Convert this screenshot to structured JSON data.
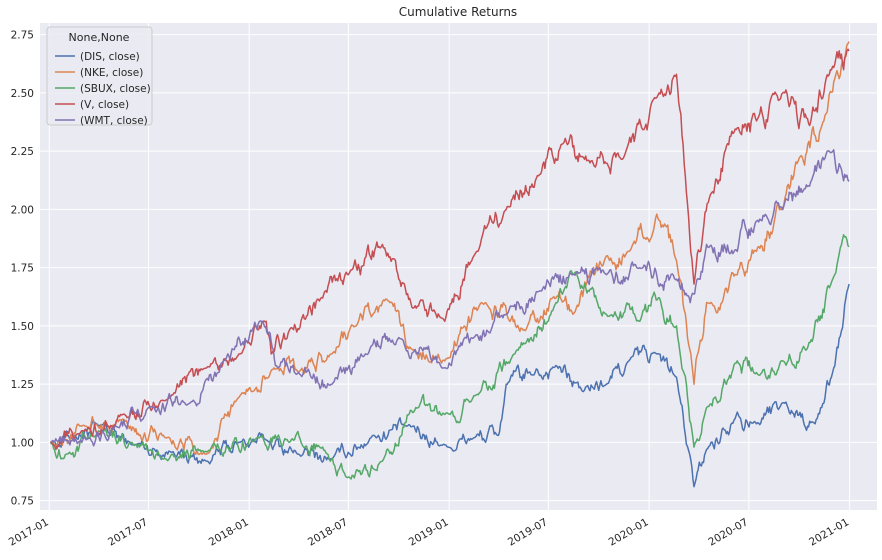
{
  "chart_data": {
    "type": "line",
    "title": "Cumulative Returns",
    "xlabel": "",
    "ylabel": "",
    "x_domain": [
      "2016-12-15",
      "2021-02-20"
    ],
    "ylim": [
      0.71,
      2.8
    ],
    "x_ticks": [
      "2017-01",
      "2017-07",
      "2018-01",
      "2018-07",
      "2019-01",
      "2019-07",
      "2020-01",
      "2020-07",
      "2021-01"
    ],
    "y_ticks": [
      0.75,
      1.0,
      1.25,
      1.5,
      1.75,
      2.0,
      2.25,
      2.5,
      2.75
    ],
    "y_tick_labels": [
      "0.75",
      "1.00",
      "1.25",
      "1.50",
      "1.75",
      "2.00",
      "2.25",
      "2.50",
      "2.75"
    ],
    "grid": true,
    "background": "#EAEAF2",
    "legend": {
      "title": "None,None",
      "position": "top-left",
      "entries": [
        "(DIS, close)",
        "(NKE, close)",
        "(SBUX, close)",
        "(V, close)",
        "(WMT, close)"
      ]
    },
    "series": [
      {
        "name": "(DIS, close)",
        "color": "#4C72B0",
        "x": [
          "2017-01-03",
          "2017-02-15",
          "2017-04-01",
          "2017-06-01",
          "2017-08-15",
          "2017-10-15",
          "2017-12-15",
          "2018-02-01",
          "2018-04-01",
          "2018-06-01",
          "2018-08-15",
          "2018-10-15",
          "2018-12-24",
          "2019-02-15",
          "2019-04-01",
          "2019-04-15",
          "2019-06-01",
          "2019-07-15",
          "2019-09-01",
          "2019-10-15",
          "2019-11-25",
          "2020-01-15",
          "2020-02-20",
          "2020-03-23",
          "2020-04-15",
          "2020-06-10",
          "2020-07-15",
          "2020-09-01",
          "2020-10-30",
          "2020-12-01",
          "2020-12-31"
        ],
        "values": [
          1.0,
          1.03,
          1.07,
          0.99,
          0.96,
          0.92,
          1.0,
          1.01,
          0.95,
          0.93,
          1.03,
          1.07,
          0.99,
          1.02,
          1.03,
          1.25,
          1.29,
          1.33,
          1.22,
          1.25,
          1.35,
          1.38,
          1.28,
          0.81,
          0.97,
          1.13,
          1.08,
          1.17,
          1.08,
          1.3,
          1.68
        ]
      },
      {
        "name": "(NKE, close)",
        "color": "#DD8452",
        "x": [
          "2017-01-03",
          "2017-03-01",
          "2017-05-15",
          "2017-08-01",
          "2017-10-15",
          "2017-12-15",
          "2018-02-15",
          "2018-04-01",
          "2018-06-01",
          "2018-07-15",
          "2018-09-15",
          "2018-10-25",
          "2018-12-24",
          "2019-03-01",
          "2019-05-20",
          "2019-07-15",
          "2019-08-15",
          "2019-10-15",
          "2019-11-25",
          "2020-01-15",
          "2020-02-20",
          "2020-03-23",
          "2020-04-15",
          "2020-06-10",
          "2020-07-15",
          "2020-09-01",
          "2020-10-01",
          "2020-11-15",
          "2020-12-31"
        ],
        "values": [
          1.0,
          1.07,
          1.1,
          1.02,
          0.95,
          1.2,
          1.32,
          1.3,
          1.38,
          1.5,
          1.6,
          1.4,
          1.35,
          1.6,
          1.48,
          1.62,
          1.55,
          1.8,
          1.82,
          1.98,
          1.78,
          1.25,
          1.6,
          1.72,
          1.82,
          2.0,
          2.22,
          2.38,
          2.72
        ]
      },
      {
        "name": "(SBUX, close)",
        "color": "#55A868",
        "x": [
          "2017-01-03",
          "2017-02-01",
          "2017-04-01",
          "2017-06-01",
          "2017-08-01",
          "2017-10-15",
          "2018-01-15",
          "2018-03-15",
          "2018-05-15",
          "2018-06-28",
          "2018-09-01",
          "2018-11-01",
          "2018-12-24",
          "2019-02-15",
          "2019-05-01",
          "2019-07-15",
          "2019-08-15",
          "2019-10-15",
          "2019-12-15",
          "2020-01-20",
          "2020-02-20",
          "2020-03-23",
          "2020-04-15",
          "2020-06-10",
          "2020-07-15",
          "2020-09-01",
          "2020-10-15",
          "2020-12-01",
          "2020-12-31"
        ],
        "values": [
          1.0,
          0.95,
          1.05,
          1.0,
          0.93,
          0.96,
          1.02,
          1.0,
          0.98,
          0.85,
          0.92,
          1.15,
          1.12,
          1.2,
          1.38,
          1.6,
          1.72,
          1.55,
          1.52,
          1.62,
          1.5,
          0.98,
          1.15,
          1.35,
          1.3,
          1.35,
          1.4,
          1.7,
          1.84
        ]
      },
      {
        "name": "(V, close)",
        "color": "#C44E52",
        "x": [
          "2017-01-03",
          "2017-03-01",
          "2017-05-15",
          "2017-08-01",
          "2017-10-15",
          "2017-12-15",
          "2018-02-01",
          "2018-02-10",
          "2018-03-15",
          "2018-05-15",
          "2018-07-01",
          "2018-09-01",
          "2018-10-01",
          "2018-10-25",
          "2018-12-24",
          "2019-02-15",
          "2019-04-15",
          "2019-06-15",
          "2019-07-26",
          "2019-09-15",
          "2019-11-15",
          "2020-01-15",
          "2020-02-20",
          "2020-03-23",
          "2020-04-20",
          "2020-06-10",
          "2020-07-15",
          "2020-09-01",
          "2020-10-20",
          "2020-11-25",
          "2020-12-31"
        ],
        "values": [
          1.0,
          1.05,
          1.12,
          1.18,
          1.32,
          1.38,
          1.52,
          1.38,
          1.48,
          1.62,
          1.72,
          1.85,
          1.7,
          1.58,
          1.52,
          1.8,
          2.0,
          2.15,
          2.28,
          2.2,
          2.22,
          2.48,
          2.58,
          1.68,
          2.05,
          2.35,
          2.38,
          2.5,
          2.36,
          2.58,
          2.68
        ]
      },
      {
        "name": "(WMT, close)",
        "color": "#8172B3",
        "x": [
          "2017-01-03",
          "2017-03-15",
          "2017-05-01",
          "2017-07-01",
          "2017-09-15",
          "2017-11-15",
          "2018-01-25",
          "2018-02-22",
          "2018-04-01",
          "2018-06-01",
          "2018-08-01",
          "2018-10-01",
          "2018-12-24",
          "2019-02-15",
          "2019-04-15",
          "2019-06-15",
          "2019-08-15",
          "2019-10-15",
          "2019-12-15",
          "2020-02-20",
          "2020-03-16",
          "2020-04-15",
          "2020-06-10",
          "2020-07-15",
          "2020-09-01",
          "2020-10-20",
          "2020-11-25",
          "2020-12-31"
        ],
        "values": [
          1.0,
          1.02,
          1.07,
          1.15,
          1.17,
          1.35,
          1.52,
          1.32,
          1.3,
          1.25,
          1.38,
          1.45,
          1.32,
          1.45,
          1.55,
          1.65,
          1.72,
          1.72,
          1.75,
          1.7,
          1.6,
          1.85,
          1.82,
          1.95,
          2.0,
          2.1,
          2.25,
          2.12
        ]
      }
    ]
  }
}
